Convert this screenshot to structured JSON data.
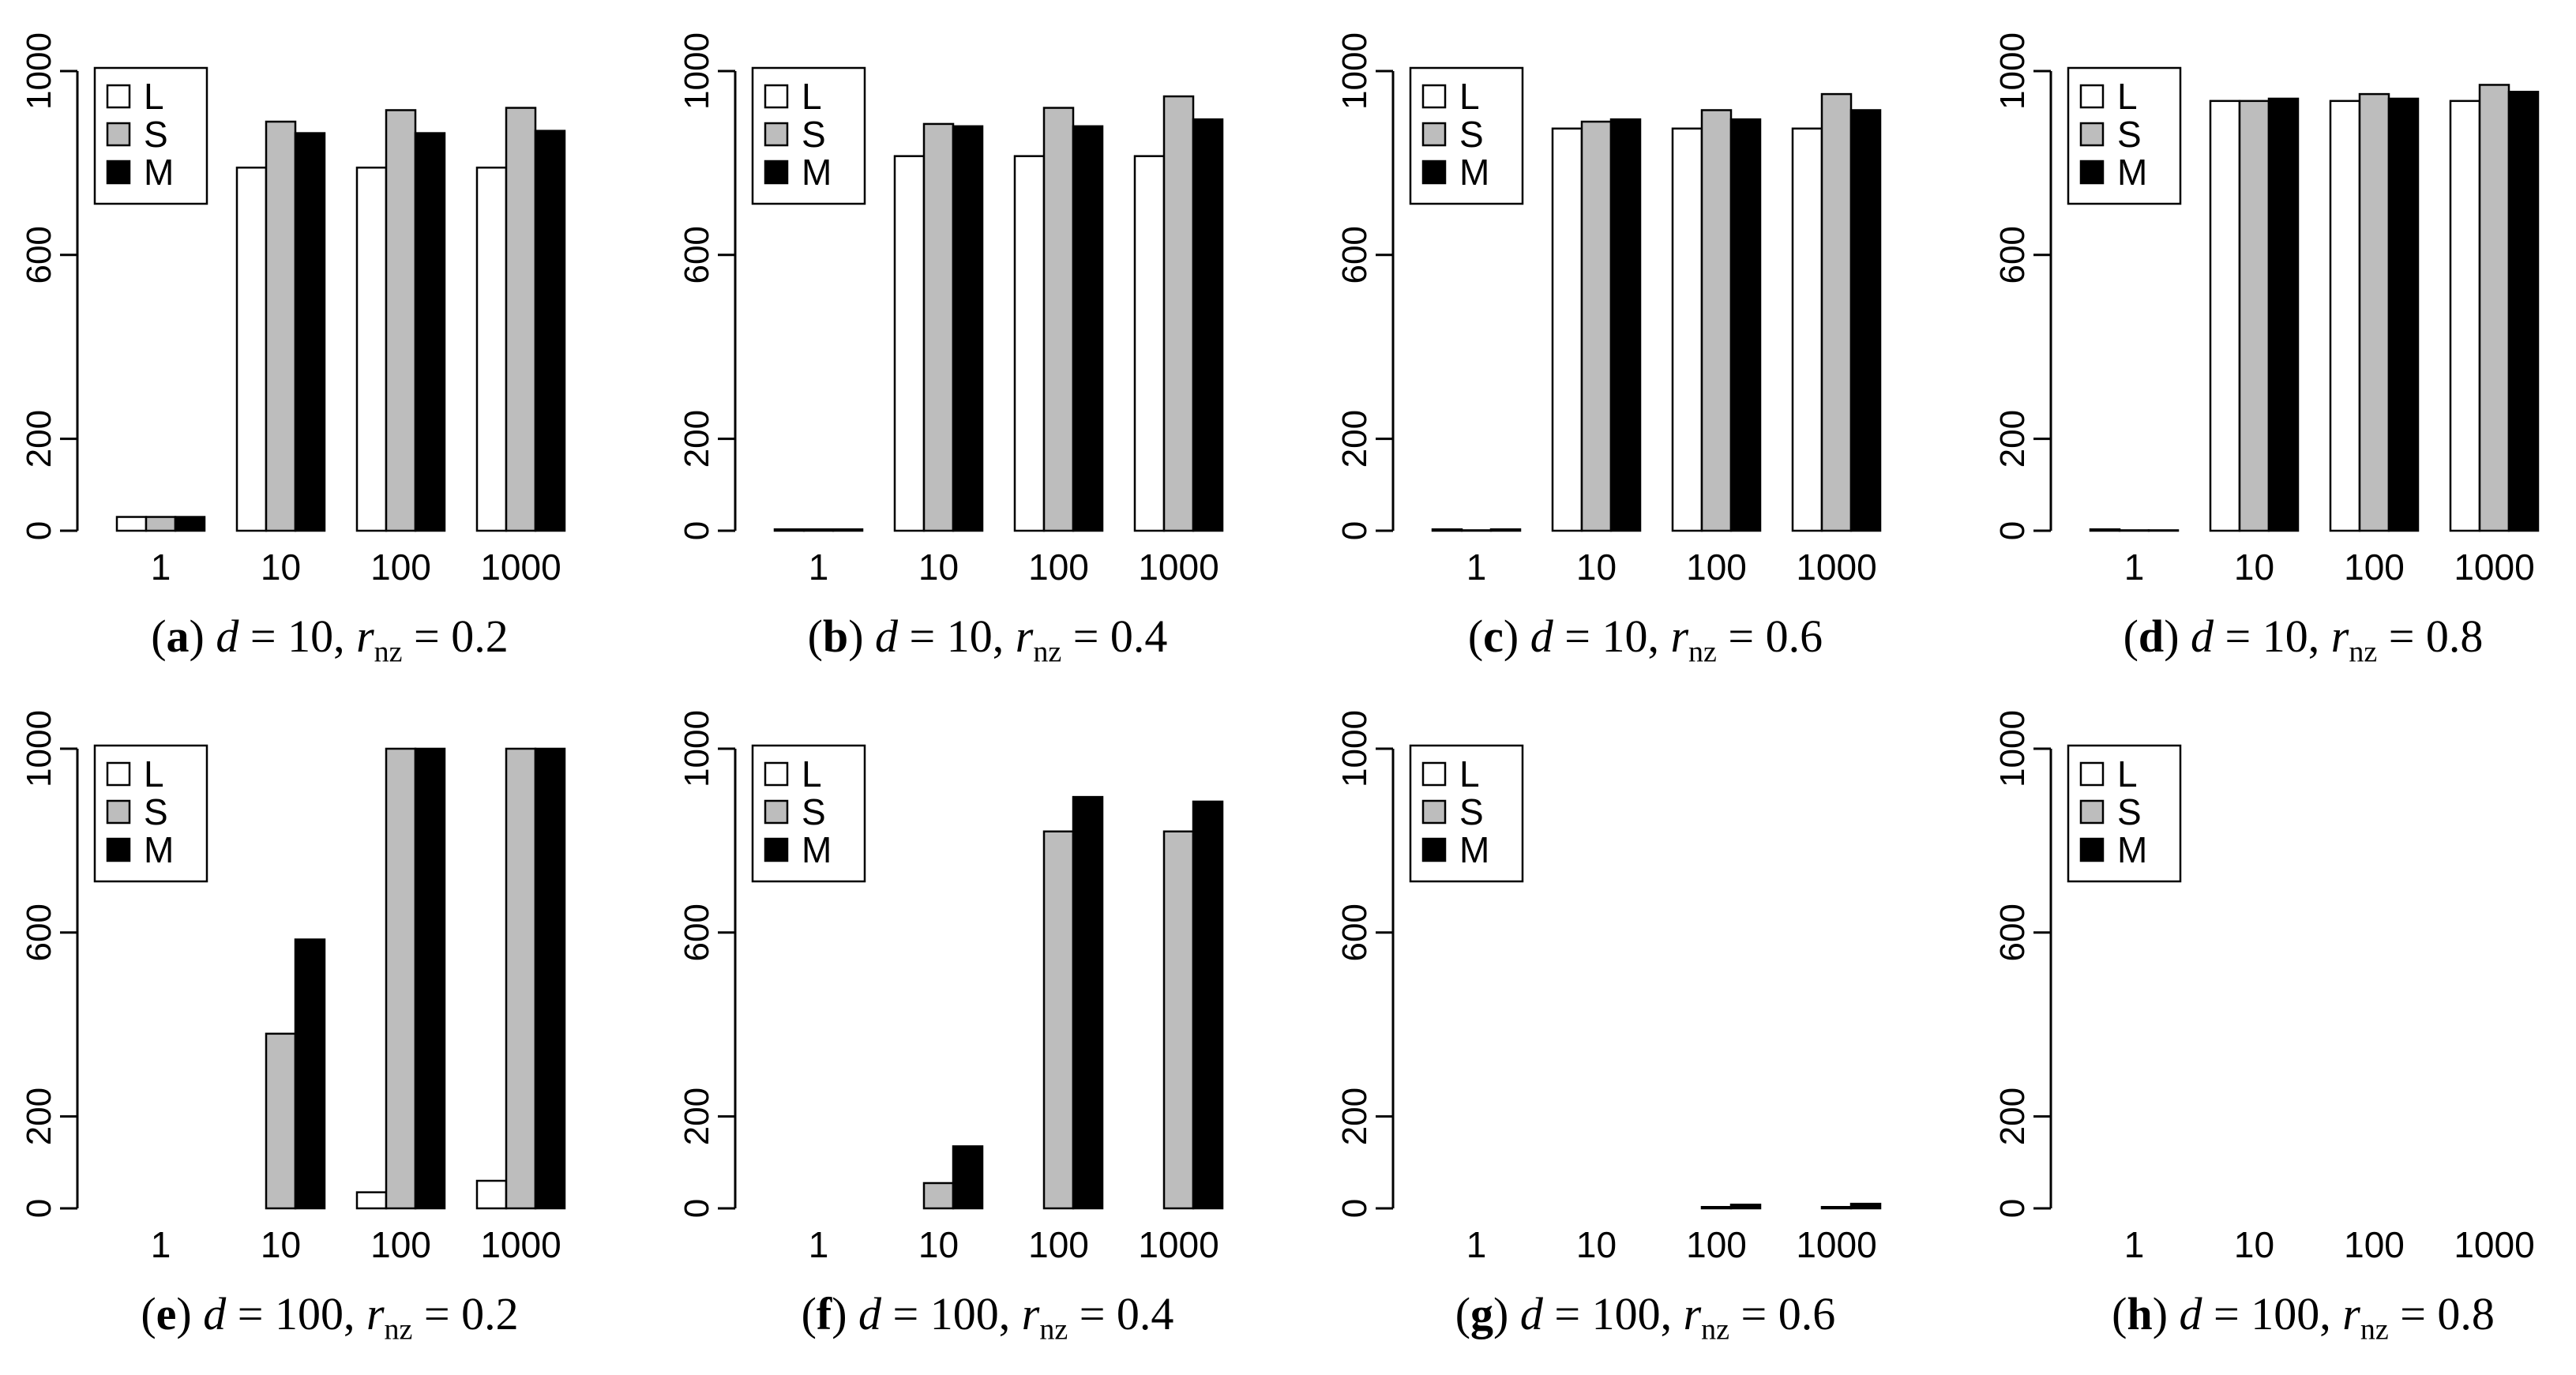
{
  "legend_colors": {
    "L": "#ffffff",
    "S": "#bdbdbd",
    "M": "#000000"
  },
  "chart_data": [
    {
      "type": "bar",
      "panel": "a",
      "caption_rest": "= 10,",
      "d": "d",
      "r": "r",
      "rsub": "nz",
      "rval": "= 0.2",
      "categories": [
        "1",
        "10",
        "100",
        "1000"
      ],
      "yticks": [
        "0",
        "200",
        "600",
        "1000"
      ],
      "ylim": [
        0,
        1000
      ],
      "legend": [
        "L",
        "S",
        "M"
      ],
      "series": [
        {
          "name": "L",
          "values": [
            30,
            790,
            790,
            790
          ]
        },
        {
          "name": "S",
          "values": [
            30,
            890,
            915,
            920
          ]
        },
        {
          "name": "M",
          "values": [
            30,
            865,
            865,
            870
          ]
        }
      ]
    },
    {
      "type": "bar",
      "panel": "b",
      "caption_rest": "= 10,",
      "d": "d",
      "r": "r",
      "rsub": "nz",
      "rval": "= 0.4",
      "categories": [
        "1",
        "10",
        "100",
        "1000"
      ],
      "yticks": [
        "0",
        "200",
        "600",
        "1000"
      ],
      "ylim": [
        0,
        1000
      ],
      "legend": [
        "L",
        "S",
        "M"
      ],
      "series": [
        {
          "name": "L",
          "values": [
            3,
            815,
            815,
            815
          ]
        },
        {
          "name": "S",
          "values": [
            3,
            885,
            920,
            945
          ]
        },
        {
          "name": "M",
          "values": [
            3,
            880,
            880,
            895
          ]
        }
      ]
    },
    {
      "type": "bar",
      "panel": "c",
      "caption_rest": "= 10,",
      "d": "d",
      "r": "r",
      "rsub": "nz",
      "rval": "= 0.6",
      "categories": [
        "1",
        "10",
        "100",
        "1000"
      ],
      "yticks": [
        "0",
        "200",
        "600",
        "1000"
      ],
      "ylim": [
        0,
        1000
      ],
      "legend": [
        "L",
        "S",
        "M"
      ],
      "series": [
        {
          "name": "L",
          "values": [
            3,
            875,
            875,
            875
          ]
        },
        {
          "name": "S",
          "values": [
            1,
            890,
            915,
            950
          ]
        },
        {
          "name": "M",
          "values": [
            3,
            895,
            895,
            915
          ]
        }
      ]
    },
    {
      "type": "bar",
      "panel": "d",
      "caption_rest": "= 10,",
      "d": "d",
      "r": "r",
      "rsub": "nz",
      "rval": "= 0.8",
      "categories": [
        "1",
        "10",
        "100",
        "1000"
      ],
      "yticks": [
        "0",
        "200",
        "600",
        "1000"
      ],
      "ylim": [
        0,
        1000
      ],
      "legend": [
        "L",
        "S",
        "M"
      ],
      "series": [
        {
          "name": "L",
          "values": [
            3,
            935,
            935,
            935
          ]
        },
        {
          "name": "S",
          "values": [
            1,
            935,
            950,
            970
          ]
        },
        {
          "name": "M",
          "values": [
            1,
            940,
            940,
            955
          ]
        }
      ]
    },
    {
      "type": "bar",
      "panel": "e",
      "caption_rest": "= 100,",
      "d": "d",
      "r": "r",
      "rsub": "nz",
      "rval": "= 0.2",
      "categories": [
        "1",
        "10",
        "100",
        "1000"
      ],
      "yticks": [
        "0",
        "200",
        "600",
        "1000"
      ],
      "ylim": [
        0,
        1000
      ],
      "legend": [
        "L",
        "S",
        "M"
      ],
      "series": [
        {
          "name": "L",
          "values": [
            0,
            0,
            35,
            60
          ]
        },
        {
          "name": "S",
          "values": [
            0,
            380,
            1000,
            1000
          ]
        },
        {
          "name": "M",
          "values": [
            0,
            585,
            1000,
            1000
          ]
        }
      ]
    },
    {
      "type": "bar",
      "panel": "f",
      "caption_rest": "= 100,",
      "d": "d",
      "r": "r",
      "rsub": "nz",
      "rval": "= 0.4",
      "categories": [
        "1",
        "10",
        "100",
        "1000"
      ],
      "yticks": [
        "0",
        "200",
        "600",
        "1000"
      ],
      "ylim": [
        0,
        1000
      ],
      "legend": [
        "L",
        "S",
        "M"
      ],
      "series": [
        {
          "name": "L",
          "values": [
            0,
            0,
            0,
            0
          ]
        },
        {
          "name": "S",
          "values": [
            0,
            55,
            820,
            820
          ]
        },
        {
          "name": "M",
          "values": [
            0,
            135,
            895,
            885
          ]
        }
      ]
    },
    {
      "type": "bar",
      "panel": "g",
      "caption_rest": "= 100,",
      "d": "d",
      "r": "r",
      "rsub": "nz",
      "rval": "= 0.6",
      "categories": [
        "1",
        "10",
        "100",
        "1000"
      ],
      "yticks": [
        "0",
        "200",
        "600",
        "1000"
      ],
      "ylim": [
        0,
        1000
      ],
      "legend": [
        "L",
        "S",
        "M"
      ],
      "series": [
        {
          "name": "L",
          "values": [
            0,
            0,
            0,
            0
          ]
        },
        {
          "name": "S",
          "values": [
            0,
            0,
            3,
            3
          ]
        },
        {
          "name": "M",
          "values": [
            0,
            0,
            8,
            10
          ]
        }
      ]
    },
    {
      "type": "bar",
      "panel": "h",
      "caption_rest": "= 100,",
      "d": "d",
      "r": "r",
      "rsub": "nz",
      "rval": "= 0.8",
      "categories": [
        "1",
        "10",
        "100",
        "1000"
      ],
      "yticks": [
        "0",
        "200",
        "600",
        "1000"
      ],
      "ylim": [
        0,
        1000
      ],
      "legend": [
        "L",
        "S",
        "M"
      ],
      "series": [
        {
          "name": "L",
          "values": [
            0,
            0,
            0,
            0
          ]
        },
        {
          "name": "S",
          "values": [
            0,
            0,
            0,
            0
          ]
        },
        {
          "name": "M",
          "values": [
            0,
            0,
            0,
            0
          ]
        }
      ]
    }
  ]
}
